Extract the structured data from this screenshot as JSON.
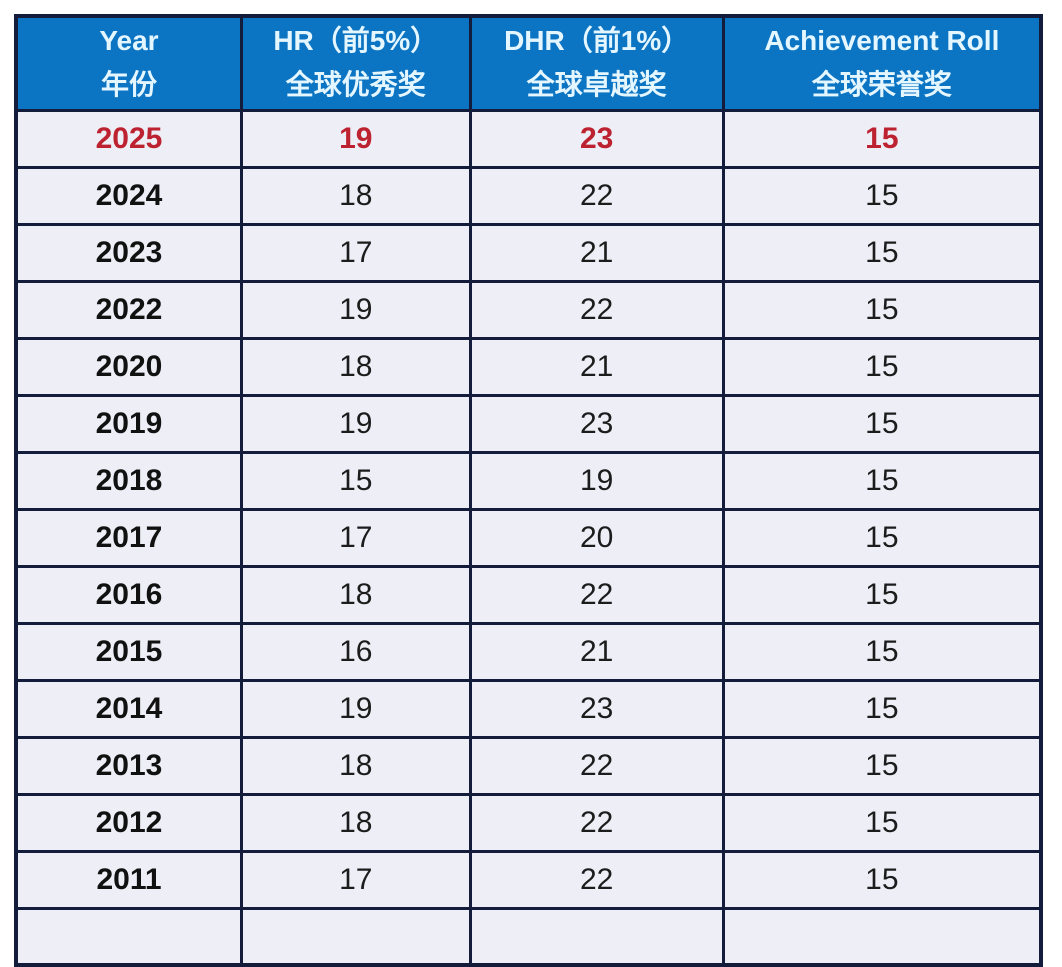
{
  "chart_data": {
    "type": "table",
    "columns": [
      {
        "en": "Year",
        "zh": "年份"
      },
      {
        "en": "HR（前5%）",
        "zh": "全球优秀奖"
      },
      {
        "en": "DHR（前1%）",
        "zh": "全球卓越奖"
      },
      {
        "en": "Achievement Roll",
        "zh": "全球荣誉奖"
      }
    ],
    "rows": [
      {
        "year": "2025",
        "hr_top5": "19",
        "dhr_top1": "23",
        "achievement_roll": "15",
        "highlight": true
      },
      {
        "year": "2024",
        "hr_top5": "18",
        "dhr_top1": "22",
        "achievement_roll": "15",
        "highlight": false
      },
      {
        "year": "2023",
        "hr_top5": "17",
        "dhr_top1": "21",
        "achievement_roll": "15",
        "highlight": false
      },
      {
        "year": "2022",
        "hr_top5": "19",
        "dhr_top1": "22",
        "achievement_roll": "15",
        "highlight": false
      },
      {
        "year": "2020",
        "hr_top5": "18",
        "dhr_top1": "21",
        "achievement_roll": "15",
        "highlight": false
      },
      {
        "year": "2019",
        "hr_top5": "19",
        "dhr_top1": "23",
        "achievement_roll": "15",
        "highlight": false
      },
      {
        "year": "2018",
        "hr_top5": "15",
        "dhr_top1": "19",
        "achievement_roll": "15",
        "highlight": false
      },
      {
        "year": "2017",
        "hr_top5": "17",
        "dhr_top1": "20",
        "achievement_roll": "15",
        "highlight": false
      },
      {
        "year": "2016",
        "hr_top5": "18",
        "dhr_top1": "22",
        "achievement_roll": "15",
        "highlight": false
      },
      {
        "year": "2015",
        "hr_top5": "16",
        "dhr_top1": "21",
        "achievement_roll": "15",
        "highlight": false
      },
      {
        "year": "2014",
        "hr_top5": "19",
        "dhr_top1": "23",
        "achievement_roll": "15",
        "highlight": false
      },
      {
        "year": "2013",
        "hr_top5": "18",
        "dhr_top1": "22",
        "achievement_roll": "15",
        "highlight": false
      },
      {
        "year": "2012",
        "hr_top5": "18",
        "dhr_top1": "22",
        "achievement_roll": "15",
        "highlight": false
      },
      {
        "year": "2011",
        "hr_top5": "17",
        "dhr_top1": "22",
        "achievement_roll": "15",
        "highlight": false
      }
    ],
    "layout": {
      "column_width_percents": [
        22.0,
        22.3,
        24.7,
        31.0
      ],
      "clipped_partial_row_at_bottom": true
    }
  },
  "colors": {
    "header_bg": "#0c75c3",
    "header_text": "#e4f6ff",
    "row_bg": "#edeef6",
    "border": "#131c3b",
    "highlight_text": "#bd2230",
    "body_text": "#1c1c1c",
    "year_text": "#111111"
  }
}
